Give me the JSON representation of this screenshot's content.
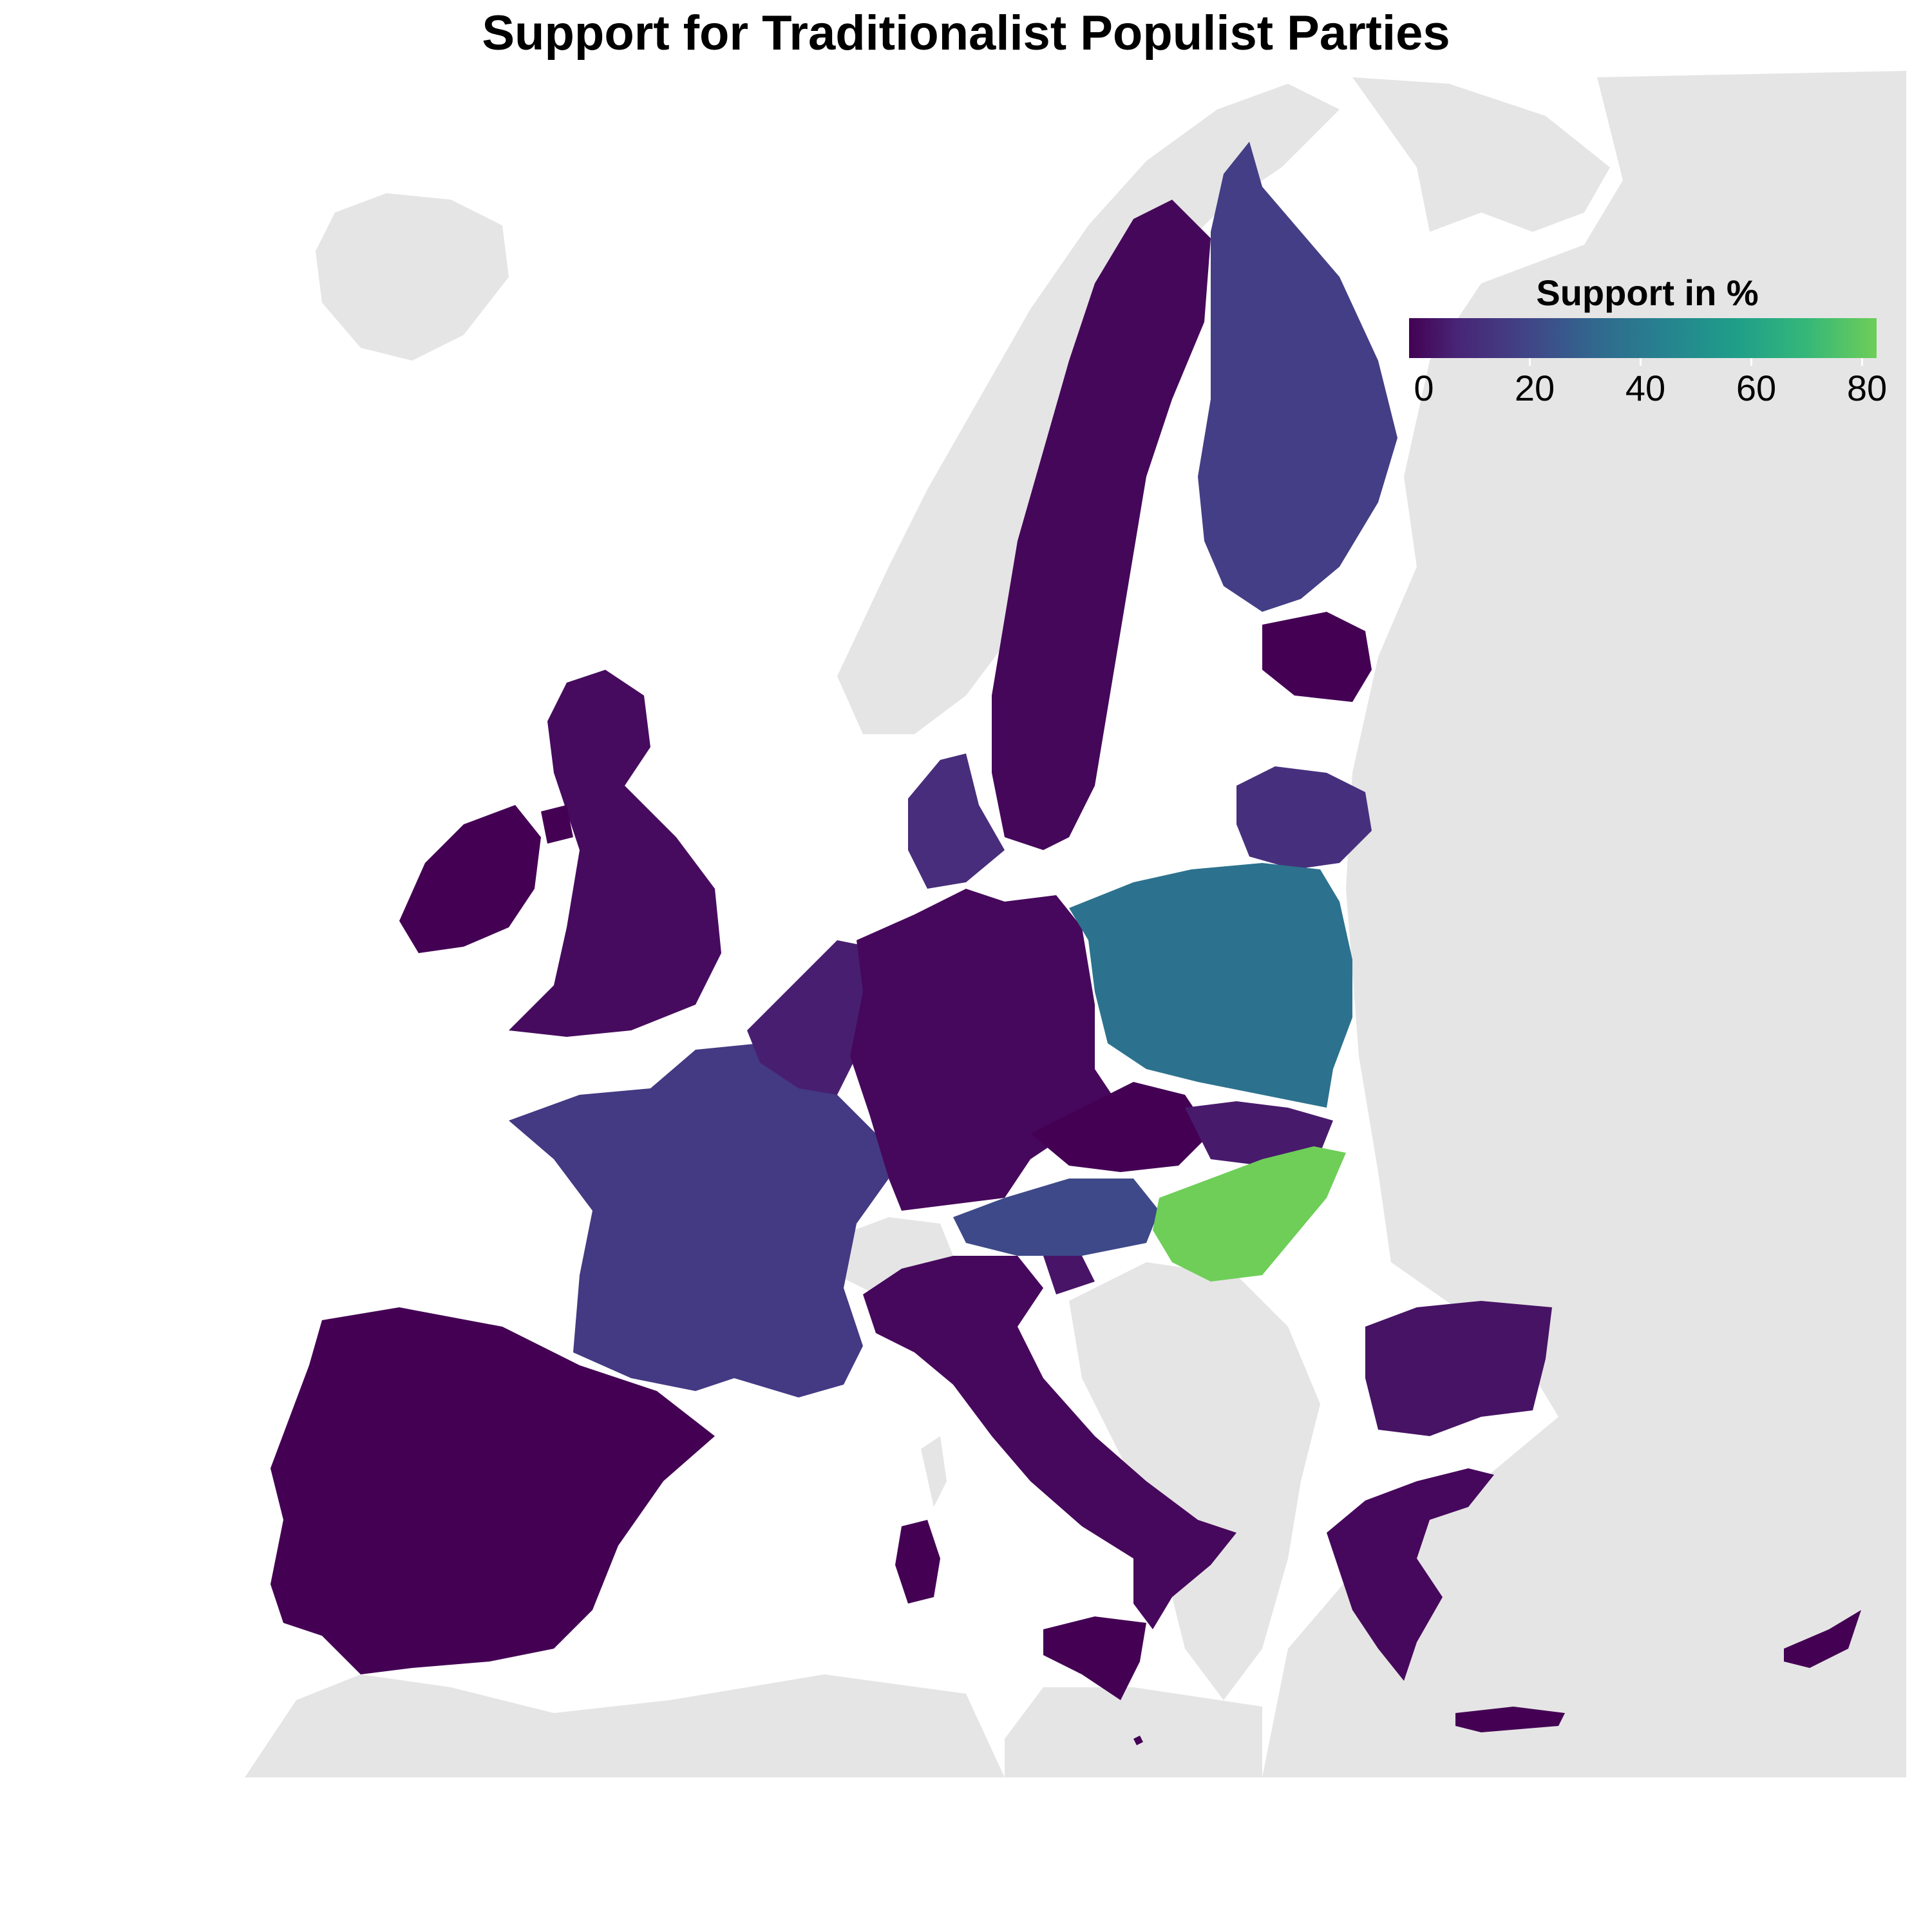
{
  "title": "Support for Traditionalist Populist Parties",
  "legend": {
    "title": "Support in %",
    "ticks": [
      "0",
      "20",
      "40",
      "60",
      "80"
    ],
    "range": [
      0,
      82
    ],
    "colors": [
      "#440154",
      "#3b528b",
      "#21908d",
      "#27ad81",
      "#6ece58"
    ]
  },
  "map": {
    "background_land_color": "#e5e5e5",
    "sea_color": "#ffffff",
    "regions": [
      {
        "name": "Iceland",
        "value": null
      },
      {
        "name": "Ireland",
        "value": 3
      },
      {
        "name": "United Kingdom",
        "value": 6
      },
      {
        "name": "Spain",
        "value": 1
      },
      {
        "name": "Portugal",
        "value": 1
      },
      {
        "name": "France",
        "value": 22
      },
      {
        "name": "Belgium",
        "value": 12
      },
      {
        "name": "Netherlands",
        "value": 12
      },
      {
        "name": "Germany",
        "value": 5
      },
      {
        "name": "Denmark",
        "value": 16
      },
      {
        "name": "Norway",
        "value": null
      },
      {
        "name": "Sweden",
        "value": 4
      },
      {
        "name": "Finland",
        "value": 18
      },
      {
        "name": "Estonia",
        "value": 1
      },
      {
        "name": "Latvia",
        "value": 5
      },
      {
        "name": "Lithuania",
        "value": 18
      },
      {
        "name": "Poland",
        "value": 38
      },
      {
        "name": "Czech Republic",
        "value": 2
      },
      {
        "name": "Slovakia",
        "value": 10
      },
      {
        "name": "Austria",
        "value": 26
      },
      {
        "name": "Switzerland",
        "value": null
      },
      {
        "name": "Hungary",
        "value": 72
      },
      {
        "name": "Italy",
        "value": 6
      },
      {
        "name": "Slovenia",
        "value": 8
      },
      {
        "name": "Croatia",
        "value": null
      },
      {
        "name": "Bulgaria",
        "value": 8
      },
      {
        "name": "Greece",
        "value": 10
      },
      {
        "name": "Cyprus",
        "value": 5
      },
      {
        "name": "Malta",
        "value": 3
      }
    ]
  }
}
